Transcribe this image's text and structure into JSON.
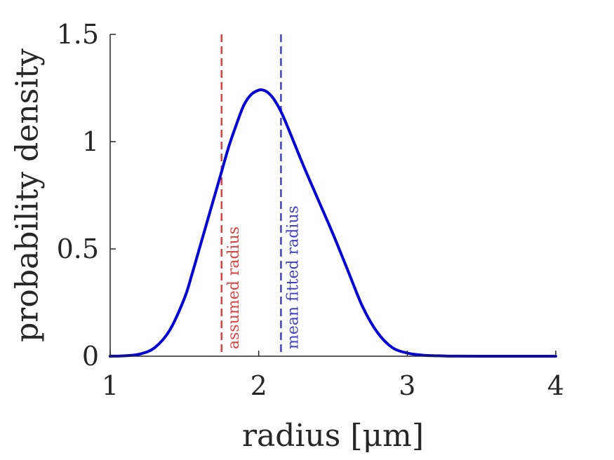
{
  "chart_data": {
    "type": "line",
    "title": "",
    "xlabel": "radius [μm]",
    "ylabel": "probability density",
    "xlim": [
      1,
      4
    ],
    "ylim": [
      0,
      1.5
    ],
    "x_ticks": [
      1,
      2,
      3,
      4
    ],
    "x_tick_labels": [
      "1",
      "2",
      "3",
      "4"
    ],
    "y_ticks": [
      0,
      0.5,
      1,
      1.5
    ],
    "y_tick_labels": [
      "0",
      "0.5",
      "1",
      "1.5"
    ],
    "grid": false,
    "legend": "none",
    "series": [
      {
        "color": "#0000dd",
        "style": "solid",
        "x": [
          1.0,
          1.1,
          1.2,
          1.3,
          1.4,
          1.5,
          1.55,
          1.6,
          1.65,
          1.7,
          1.75,
          1.8,
          1.85,
          1.9,
          1.95,
          2.0,
          2.03,
          2.06,
          2.1,
          2.15,
          2.2,
          2.3,
          2.4,
          2.5,
          2.6,
          2.7,
          2.8,
          2.9,
          3.0,
          3.1,
          3.2,
          3.3,
          3.5,
          4.0
        ],
        "y": [
          0.0,
          0.002,
          0.01,
          0.04,
          0.12,
          0.27,
          0.38,
          0.5,
          0.62,
          0.74,
          0.86,
          0.98,
          1.08,
          1.17,
          1.22,
          1.24,
          1.24,
          1.23,
          1.2,
          1.14,
          1.06,
          0.89,
          0.73,
          0.57,
          0.4,
          0.23,
          0.11,
          0.04,
          0.015,
          0.005,
          0.002,
          0.0005,
          0.0,
          0.0
        ]
      }
    ],
    "annotations": [
      {
        "text": "assumed radius",
        "x": 1.75,
        "color": "#e04040",
        "line_style": "dashed"
      },
      {
        "text": "mean fitted radius",
        "x": 2.15,
        "color": "#4040cc",
        "line_style": "dashed"
      }
    ]
  }
}
